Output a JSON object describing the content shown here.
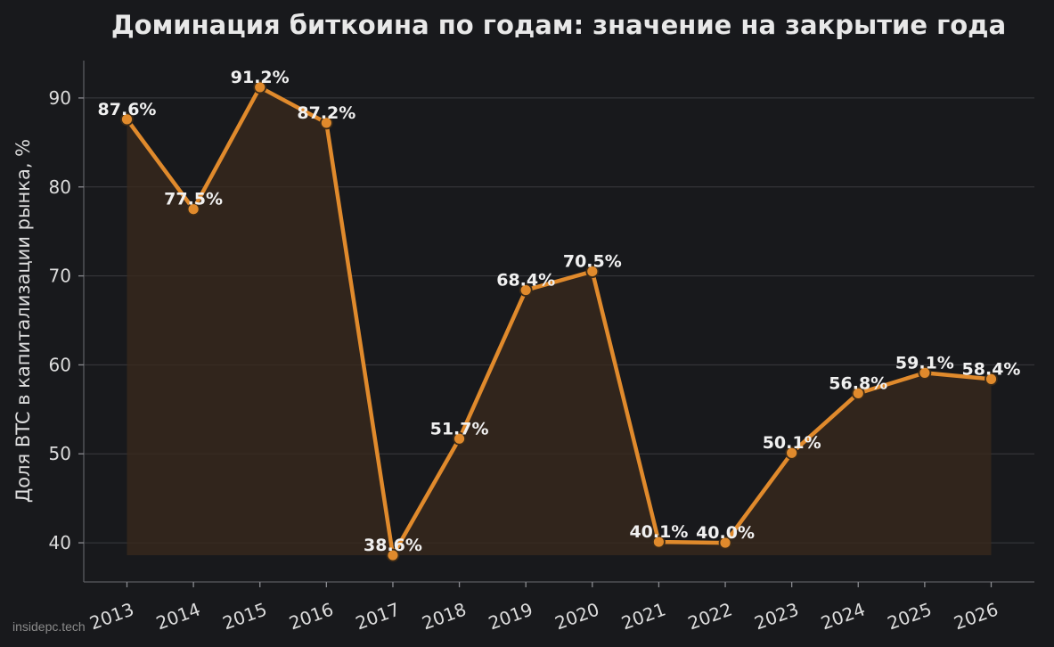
{
  "colors": {
    "background": "#18191c",
    "line": "#e08a2c",
    "marker_fill": "#e08a2c",
    "marker_edge": "#3a2a18",
    "area_fill": "#3a2a1c",
    "grid": "#3a3b3f",
    "text": "#e8e8e8"
  },
  "watermark": "insidepc.tech",
  "chart_data": {
    "type": "line",
    "title": "Доминация биткоина по годам: значение на закрытие года",
    "xlabel": "",
    "ylabel": "Доля BTC в капитализации рынка, %",
    "categories": [
      "2013",
      "2014",
      "2015",
      "2016",
      "2017",
      "2018",
      "2019",
      "2020",
      "2021",
      "2022",
      "2023",
      "2024",
      "2025",
      "2026"
    ],
    "series": [
      {
        "values": [
          87.6,
          77.5,
          91.2,
          87.2,
          38.6,
          51.7,
          68.4,
          70.5,
          40.1,
          40.0,
          50.1,
          56.8,
          59.1,
          58.4
        ],
        "labels": [
          "87.6%",
          "77.5%",
          "91.2%",
          "87.2%",
          "38.6%",
          "51.7%",
          "68.4%",
          "70.5%",
          "40.1%",
          "40.0%",
          "50.1%",
          "56.8%",
          "59.1%",
          "58.4%"
        ]
      }
    ],
    "ylim": [
      35.6,
      94.2
    ],
    "yticks": [
      40,
      50,
      60,
      70,
      80,
      90
    ],
    "ytick_labels": [
      "40",
      "50",
      "60",
      "70",
      "80",
      "90"
    ],
    "grid": true,
    "area_fill": true,
    "legend": "none"
  }
}
